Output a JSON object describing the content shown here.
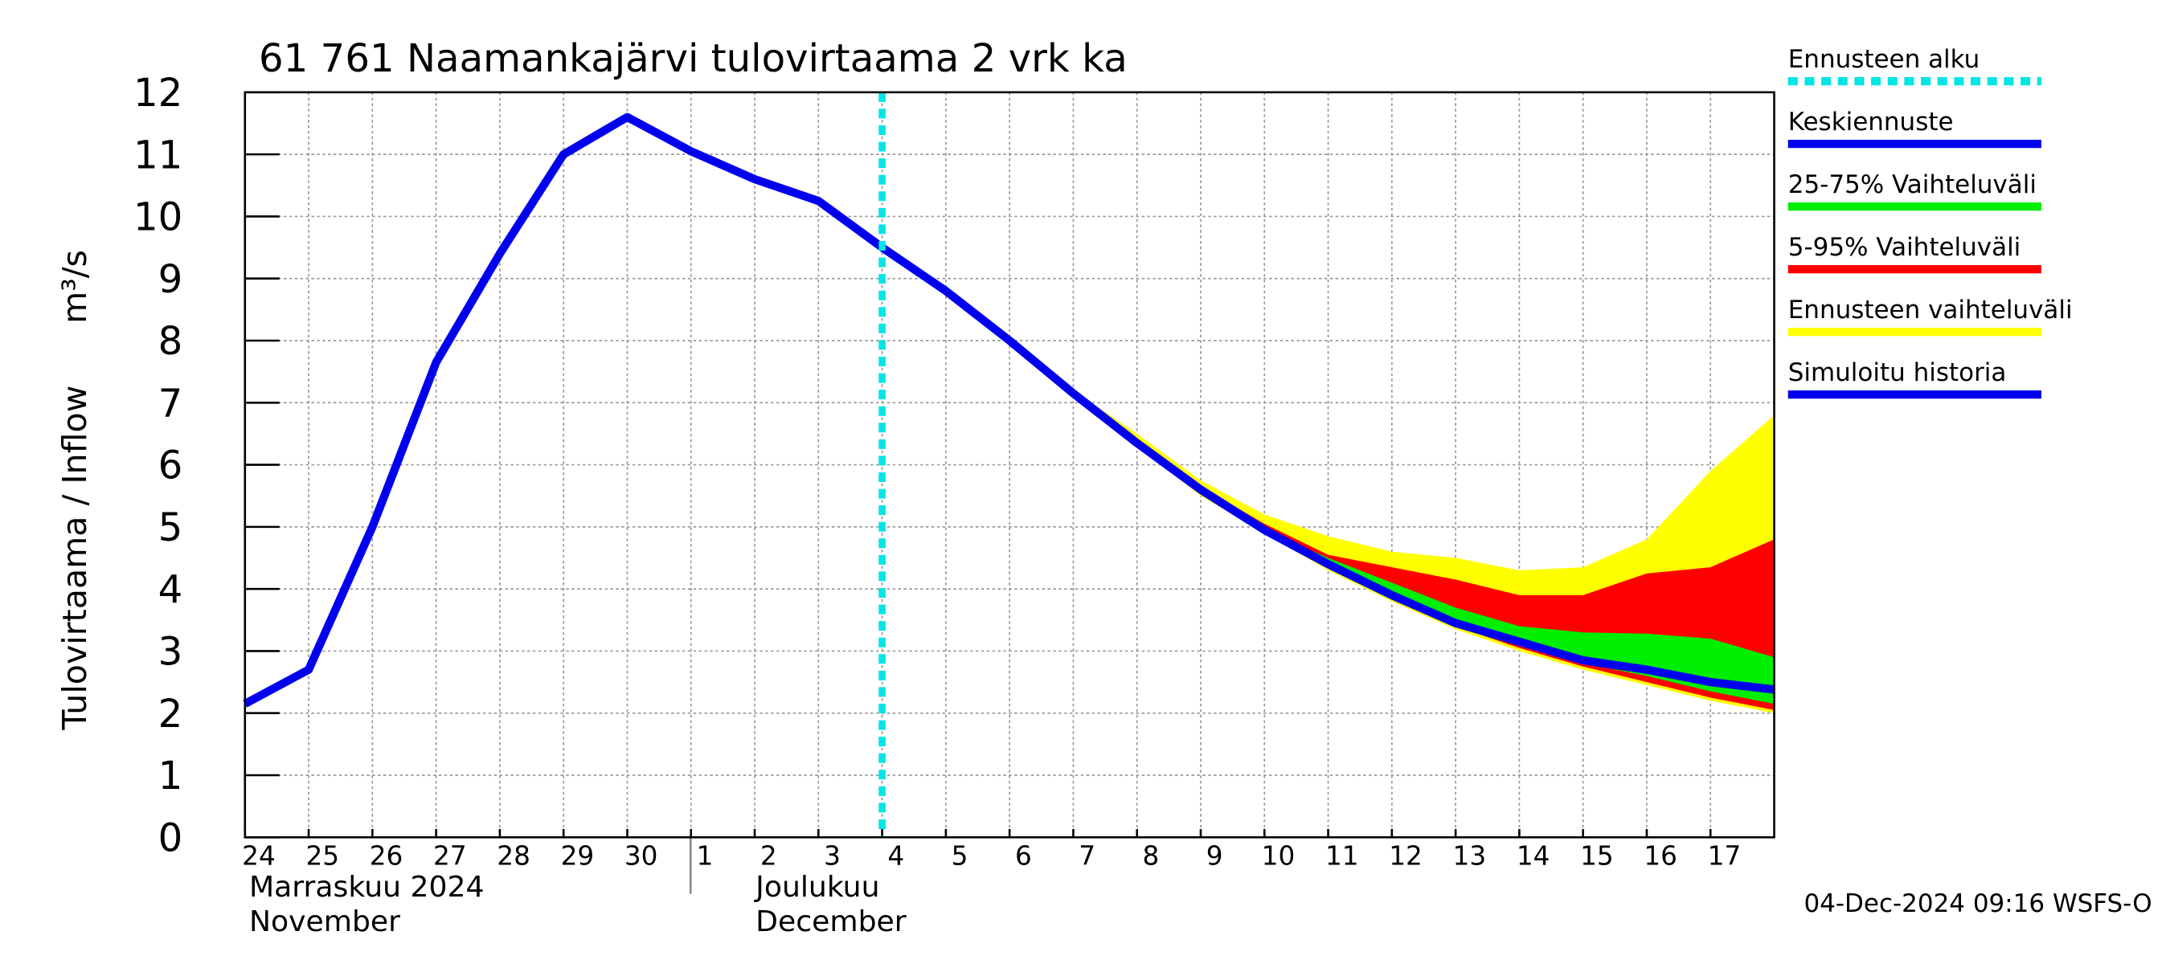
{
  "chart_data": {
    "type": "line",
    "title": "61 761 Naamankajärvi tulovirtaama 2 vrk ka",
    "y_label": "Tulovirtaama / Inflow",
    "y_unit": "m³/s",
    "month_labels": [
      [
        "Marraskuu 2024",
        "November"
      ],
      [
        "Joulukuu",
        "December"
      ]
    ],
    "timestamp": "04-Dec-2024 09:16 WSFS-O",
    "xlim": [
      "2024-11-24",
      "2024-12-18"
    ],
    "xticks": [
      {
        "value": "2024-11-24",
        "label": "24"
      },
      {
        "value": "2024-11-25",
        "label": "25"
      },
      {
        "value": "2024-11-26",
        "label": "26"
      },
      {
        "value": "2024-11-27",
        "label": "27"
      },
      {
        "value": "2024-11-28",
        "label": "28"
      },
      {
        "value": "2024-11-29",
        "label": "29"
      },
      {
        "value": "2024-11-30",
        "label": "30"
      },
      {
        "value": "2024-12-01",
        "label": "1"
      },
      {
        "value": "2024-12-02",
        "label": "2"
      },
      {
        "value": "2024-12-03",
        "label": "3"
      },
      {
        "value": "2024-12-04",
        "label": "4"
      },
      {
        "value": "2024-12-05",
        "label": "5"
      },
      {
        "value": "2024-12-06",
        "label": "6"
      },
      {
        "value": "2024-12-07",
        "label": "7"
      },
      {
        "value": "2024-12-08",
        "label": "8"
      },
      {
        "value": "2024-12-09",
        "label": "9"
      },
      {
        "value": "2024-12-10",
        "label": "10"
      },
      {
        "value": "2024-12-11",
        "label": "11"
      },
      {
        "value": "2024-12-12",
        "label": "12"
      },
      {
        "value": "2024-12-13",
        "label": "13"
      },
      {
        "value": "2024-12-14",
        "label": "14"
      },
      {
        "value": "2024-12-15",
        "label": "15"
      },
      {
        "value": "2024-12-16",
        "label": "16"
      },
      {
        "value": "2024-12-17",
        "label": "17"
      }
    ],
    "ylim": [
      0,
      12
    ],
    "yticks": [
      0,
      1,
      2,
      3,
      4,
      5,
      6,
      7,
      8,
      9,
      10,
      11,
      12
    ],
    "grid": true,
    "forecast_start": {
      "name": "Ennusteen alku",
      "x": "2024-12-04",
      "color": "#00e5e5"
    },
    "series": [
      {
        "name": "Keskiennuste",
        "color": "#0000ee",
        "x": [
          "2024-12-04",
          "2024-12-05",
          "2024-12-06",
          "2024-12-07",
          "2024-12-08",
          "2024-12-09",
          "2024-12-10",
          "2024-12-11",
          "2024-12-12",
          "2024-12-13",
          "2024-12-14",
          "2024-12-15",
          "2024-12-16",
          "2024-12-17",
          "2024-12-18"
        ],
        "values": [
          9.5,
          8.8,
          8.0,
          7.15,
          6.35,
          5.6,
          4.95,
          4.4,
          3.9,
          3.45,
          3.15,
          2.85,
          2.7,
          2.5,
          2.38
        ]
      },
      {
        "name": "Simuloitu historia",
        "color": "#0000ee",
        "x": [
          "2024-11-24",
          "2024-11-25",
          "2024-11-26",
          "2024-11-27",
          "2024-11-28",
          "2024-11-29",
          "2024-11-30",
          "2024-12-01",
          "2024-12-02",
          "2024-12-03",
          "2024-12-04"
        ],
        "values": [
          2.15,
          2.7,
          5.0,
          7.65,
          9.4,
          11.0,
          11.6,
          11.05,
          10.6,
          10.25,
          9.5
        ]
      }
    ],
    "bands": [
      {
        "name": "25-75% Vaihteluväli",
        "color": "#00ee00",
        "x": [
          "2024-12-04",
          "2024-12-05",
          "2024-12-06",
          "2024-12-07",
          "2024-12-08",
          "2024-12-09",
          "2024-12-10",
          "2024-12-11",
          "2024-12-12",
          "2024-12-13",
          "2024-12-14",
          "2024-12-15",
          "2024-12-16",
          "2024-12-17",
          "2024-12-18"
        ],
        "upper": [
          9.5,
          8.8,
          8.0,
          7.15,
          6.35,
          5.6,
          4.95,
          4.5,
          4.1,
          3.7,
          3.4,
          3.3,
          3.28,
          3.2,
          2.9
        ],
        "lower": [
          9.5,
          8.8,
          8.0,
          7.15,
          6.35,
          5.6,
          4.9,
          4.38,
          3.88,
          3.43,
          3.1,
          2.8,
          2.6,
          2.35,
          2.15
        ]
      },
      {
        "name": "5-95% Vaihteluväli",
        "color": "#ff0000",
        "x": [
          "2024-12-04",
          "2024-12-05",
          "2024-12-06",
          "2024-12-07",
          "2024-12-08",
          "2024-12-09",
          "2024-12-10",
          "2024-12-11",
          "2024-12-12",
          "2024-12-13",
          "2024-12-14",
          "2024-12-15",
          "2024-12-16",
          "2024-12-17",
          "2024-12-18"
        ],
        "upper": [
          9.5,
          8.8,
          8.0,
          7.15,
          6.4,
          5.65,
          5.05,
          4.55,
          4.35,
          4.15,
          3.9,
          3.9,
          4.25,
          4.35,
          4.8
        ],
        "lower": [
          9.5,
          8.8,
          8.0,
          7.1,
          6.3,
          5.55,
          4.9,
          4.35,
          3.85,
          3.4,
          3.05,
          2.75,
          2.5,
          2.25,
          2.05
        ]
      },
      {
        "name": "Ennusteen vaihteluväli",
        "color": "#ffff00",
        "x": [
          "2024-12-04",
          "2024-12-05",
          "2024-12-06",
          "2024-12-07",
          "2024-12-08",
          "2024-12-09",
          "2024-12-10",
          "2024-12-11",
          "2024-12-12",
          "2024-12-13",
          "2024-12-14",
          "2024-12-15",
          "2024-12-16",
          "2024-12-17",
          "2024-12-18"
        ],
        "upper": [
          9.5,
          8.8,
          8.0,
          7.2,
          6.5,
          5.75,
          5.2,
          4.85,
          4.6,
          4.5,
          4.3,
          4.35,
          4.8,
          5.9,
          6.8
        ],
        "lower": [
          9.5,
          8.8,
          8.0,
          7.1,
          6.3,
          5.5,
          4.9,
          4.3,
          3.8,
          3.35,
          3.0,
          2.7,
          2.45,
          2.2,
          2.0
        ]
      }
    ]
  }
}
